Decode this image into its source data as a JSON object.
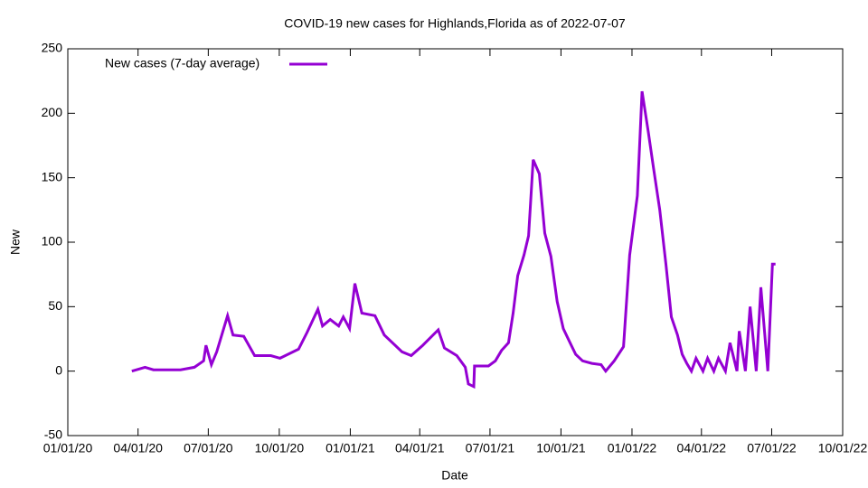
{
  "chart_data": {
    "type": "line",
    "title": "COVID-19 new cases for Highlands,Florida as of 2022-07-07",
    "x_label": "Date",
    "y_label": "New",
    "legend_position": "top-left",
    "xlim": [
      "2020-01-01",
      "2022-10-01"
    ],
    "xticks": [
      {
        "value": "2020-01-01",
        "label": "01/01/20"
      },
      {
        "value": "2020-04-01",
        "label": "04/01/20"
      },
      {
        "value": "2020-07-01",
        "label": "07/01/20"
      },
      {
        "value": "2020-10-01",
        "label": "10/01/20"
      },
      {
        "value": "2021-01-01",
        "label": "01/01/21"
      },
      {
        "value": "2021-04-01",
        "label": "04/01/21"
      },
      {
        "value": "2021-07-01",
        "label": "07/01/21"
      },
      {
        "value": "2021-10-01",
        "label": "10/01/21"
      },
      {
        "value": "2022-01-01",
        "label": "01/01/22"
      },
      {
        "value": "2022-04-01",
        "label": "04/01/22"
      },
      {
        "value": "2022-07-01",
        "label": "07/01/22"
      },
      {
        "value": "2022-10-01",
        "label": "10/01/22"
      }
    ],
    "ylim": [
      -50,
      250
    ],
    "yticks": [
      -50,
      0,
      50,
      100,
      150,
      200,
      250
    ],
    "x": [
      "2020-03-24",
      "2020-04-10",
      "2020-04-21",
      "2020-05-26",
      "2020-06-13",
      "2020-06-25",
      "2020-06-28",
      "2020-07-05",
      "2020-07-12",
      "2020-07-26",
      "2020-08-02",
      "2020-08-16",
      "2020-08-30",
      "2020-09-20",
      "2020-10-02",
      "2020-10-26",
      "2020-11-06",
      "2020-11-20",
      "2020-11-26",
      "2020-12-06",
      "2020-12-17",
      "2020-12-23",
      "2020-12-31",
      "2021-01-07",
      "2021-01-16",
      "2021-02-02",
      "2021-02-14",
      "2021-03-09",
      "2021-03-21",
      "2021-04-05",
      "2021-04-25",
      "2021-05-03",
      "2021-05-19",
      "2021-05-30",
      "2021-06-03",
      "2021-06-10",
      "2021-06-11",
      "2021-06-29",
      "2021-07-08",
      "2021-07-16",
      "2021-07-25",
      "2021-07-31",
      "2021-08-06",
      "2021-08-14",
      "2021-08-20",
      "2021-08-26",
      "2021-09-03",
      "2021-09-10",
      "2021-09-18",
      "2021-09-26",
      "2021-10-04",
      "2021-10-12",
      "2021-10-20",
      "2021-10-29",
      "2021-11-10",
      "2021-11-22",
      "2021-11-28",
      "2021-12-09",
      "2021-12-21",
      "2021-12-29",
      "2022-01-08",
      "2022-01-14",
      "2022-01-22",
      "2022-01-29",
      "2022-02-06",
      "2022-02-14",
      "2022-02-21",
      "2022-03-01",
      "2022-03-07",
      "2022-03-13",
      "2022-03-19",
      "2022-03-25",
      "2022-04-03",
      "2022-04-09",
      "2022-04-17",
      "2022-04-23",
      "2022-05-02",
      "2022-05-08",
      "2022-05-17",
      "2022-05-20",
      "2022-05-28",
      "2022-06-03",
      "2022-06-11",
      "2022-06-17",
      "2022-06-26",
      "2022-07-02",
      "2022-07-06"
    ],
    "series": [
      {
        "name": "New cases (7-day average)",
        "color": "#9400d3",
        "values": [
          0,
          3,
          1,
          1,
          3,
          8,
          20,
          5,
          15,
          43,
          28,
          27,
          12,
          12,
          10,
          17,
          30,
          48,
          35,
          40,
          35,
          42,
          33,
          68,
          45,
          43,
          28,
          15,
          12,
          20,
          32,
          18,
          12,
          3,
          -10,
          -12,
          4,
          4,
          8,
          16,
          22,
          45,
          74,
          90,
          105,
          164,
          153,
          107,
          89,
          54,
          33,
          23,
          13,
          8,
          6,
          5,
          0,
          8,
          19,
          90,
          136,
          217,
          186,
          157,
          125,
          83,
          42,
          28,
          13,
          6,
          0,
          10,
          0,
          10,
          0,
          10,
          0,
          22,
          0,
          31,
          0,
          50,
          0,
          65,
          0,
          83,
          83
        ]
      }
    ]
  }
}
